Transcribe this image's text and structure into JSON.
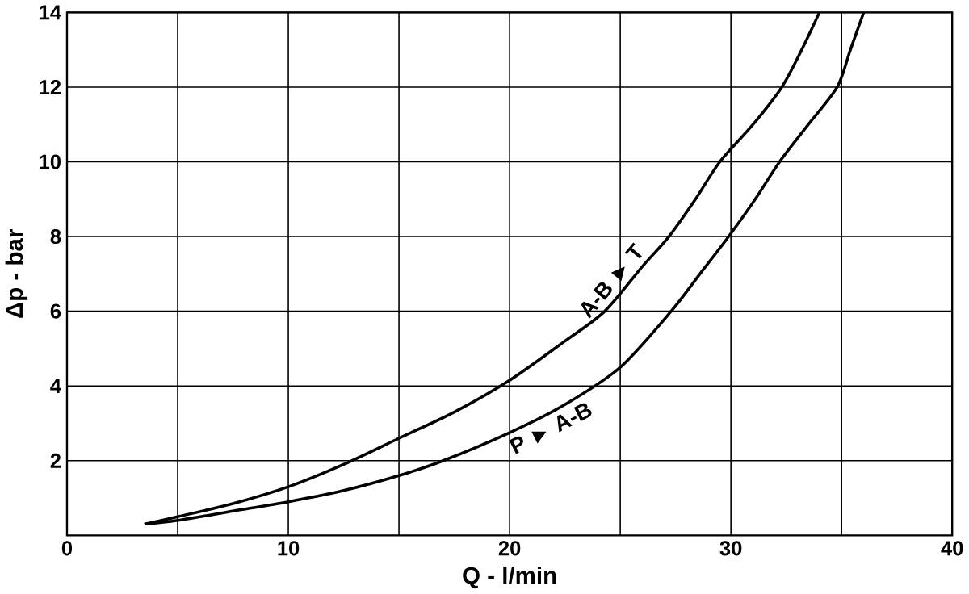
{
  "chart_data": {
    "type": "line",
    "xlabel": "Q - l/min",
    "ylabel": "Δp - bar",
    "xlim": [
      0,
      40
    ],
    "ylim": [
      0,
      14
    ],
    "xticks": [
      0,
      {
        "value": 5,
        "label": null
      },
      10,
      {
        "value": 15,
        "label": null
      },
      20,
      {
        "value": 25,
        "label": null
      },
      30,
      {
        "value": 35,
        "label": null
      },
      40
    ],
    "yticks": [
      2,
      4,
      6,
      8,
      10,
      12,
      14
    ],
    "grid": true,
    "marker": "none",
    "line_style": "solid",
    "series": [
      {
        "name": "A-B ► T",
        "color": "#000000",
        "x": [
          3.5,
          5,
          7.5,
          10,
          12.5,
          15,
          17.5,
          20,
          22.5,
          24.3,
          26,
          27.2,
          28.4,
          29.5,
          31,
          32.3,
          33.2,
          34
        ],
        "values": [
          0.3,
          0.5,
          0.85,
          1.3,
          1.9,
          2.6,
          3.3,
          4.15,
          5.2,
          6,
          7.2,
          8,
          9,
          10,
          11,
          12,
          13,
          14
        ]
      },
      {
        "name": "P ► A-B",
        "color": "#000000",
        "x": [
          3.5,
          5,
          7.5,
          10,
          12.5,
          15,
          17,
          20,
          22.5,
          25,
          27.3,
          28.6,
          29.9,
          31.1,
          32.2,
          33.5,
          34.8,
          35.4,
          36
        ],
        "values": [
          0.3,
          0.4,
          0.65,
          0.9,
          1.2,
          1.6,
          2,
          2.75,
          3.5,
          4.5,
          6,
          7,
          8,
          9,
          10,
          11,
          12,
          13,
          14
        ]
      }
    ]
  }
}
